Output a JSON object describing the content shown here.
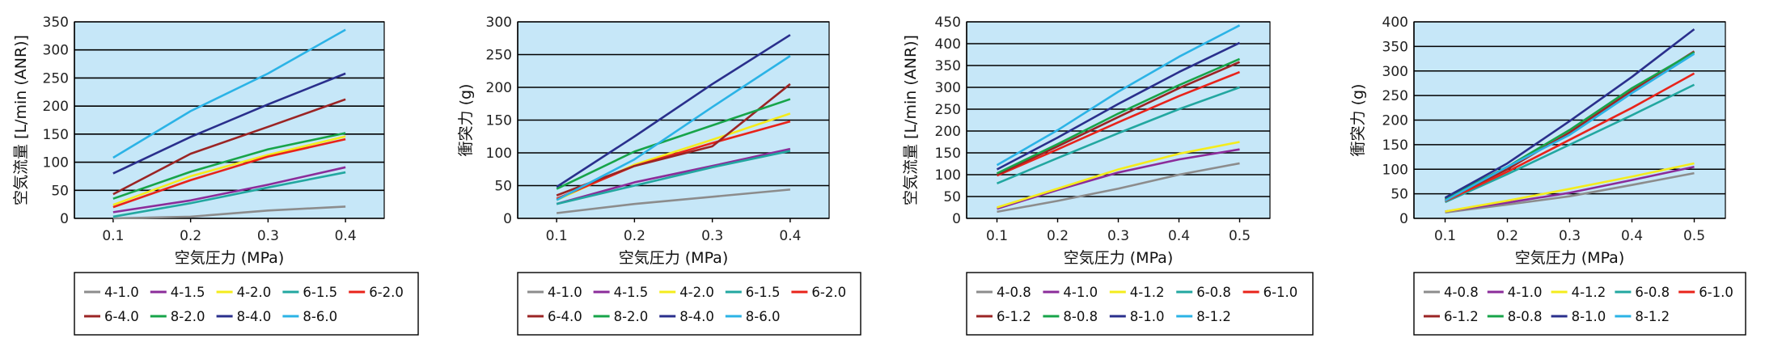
{
  "colors": {
    "plot_bg": "#c6e7f8",
    "grid": "#000000",
    "legend_border": "#000000",
    "series": {
      "gray": "#8c8c8c",
      "purple": "#8b2c9a",
      "yellow": "#f4ec1c",
      "teal": "#22a7a0",
      "red": "#e8231a",
      "darkred": "#9b2424",
      "green": "#17a449",
      "navy": "#2a2f8c",
      "sky": "#2bb3e6"
    }
  },
  "chart_data": [
    {
      "type": "line",
      "xlabel": "空気圧力 (MPa)",
      "ylabel": "空気流量 [L/min (ANR)]",
      "x": [
        0.1,
        0.2,
        0.3,
        0.4
      ],
      "xticks": [
        "0.1",
        "0.2",
        "0.3",
        "0.4"
      ],
      "xlim": [
        0.05,
        0.45
      ],
      "ylim": [
        0,
        350
      ],
      "yticks": [
        "0",
        "50",
        "100",
        "150",
        "200",
        "250",
        "300",
        "350"
      ],
      "legend_rows": 2,
      "series": [
        {
          "name": "4-1.0",
          "color": "gray",
          "values": [
            -5,
            3,
            14,
            21
          ]
        },
        {
          "name": "4-1.5",
          "color": "purple",
          "values": [
            11,
            32,
            60,
            91
          ]
        },
        {
          "name": "4-2.0",
          "color": "yellow",
          "values": [
            24,
            75,
            113,
            146
          ]
        },
        {
          "name": "6-1.5",
          "color": "teal",
          "values": [
            3,
            27,
            55,
            82
          ]
        },
        {
          "name": "6-2.0",
          "color": "red",
          "values": [
            20,
            68,
            110,
            141
          ]
        },
        {
          "name": "6-4.0",
          "color": "darkred",
          "values": [
            43,
            115,
            163,
            212
          ]
        },
        {
          "name": "8-2.0",
          "color": "green",
          "values": [
            35,
            83,
            123,
            152
          ]
        },
        {
          "name": "8-4.0",
          "color": "navy",
          "values": [
            80,
            145,
            203,
            258
          ]
        },
        {
          "name": "8-6.0",
          "color": "sky",
          "values": [
            108,
            191,
            258,
            336
          ]
        }
      ]
    },
    {
      "type": "line",
      "xlabel": "空気圧力 (MPa)",
      "ylabel": "衝突力 (g)",
      "x": [
        0.1,
        0.2,
        0.3,
        0.4
      ],
      "xticks": [
        "0.1",
        "0.2",
        "0.3",
        "0.4"
      ],
      "xlim": [
        0.05,
        0.45
      ],
      "ylim": [
        0,
        300
      ],
      "yticks": [
        "0",
        "50",
        "100",
        "150",
        "200",
        "250",
        "300"
      ],
      "legend_rows": 2,
      "series": [
        {
          "name": "4-1.0",
          "color": "gray",
          "values": [
            8,
            22,
            33,
            44
          ]
        },
        {
          "name": "4-1.5",
          "color": "purple",
          "values": [
            22,
            55,
            80,
            106
          ]
        },
        {
          "name": "4-2.0",
          "color": "yellow",
          "values": [
            28,
            82,
            120,
            160
          ]
        },
        {
          "name": "6-1.5",
          "color": "teal",
          "values": [
            22,
            50,
            78,
            103
          ]
        },
        {
          "name": "6-2.0",
          "color": "red",
          "values": [
            30,
            80,
            115,
            148
          ]
        },
        {
          "name": "6-4.0",
          "color": "darkred",
          "values": [
            35,
            80,
            110,
            205
          ]
        },
        {
          "name": "8-2.0",
          "color": "green",
          "values": [
            45,
            102,
            142,
            182
          ]
        },
        {
          "name": "8-4.0",
          "color": "navy",
          "values": [
            48,
            125,
            205,
            280
          ]
        },
        {
          "name": "8-6.0",
          "color": "sky",
          "values": [
            28,
            90,
            170,
            248
          ]
        }
      ]
    },
    {
      "type": "line",
      "xlabel": "空気圧力 (MPa)",
      "ylabel": "空気流量 [L/min (ANR)]",
      "x": [
        0.1,
        0.2,
        0.3,
        0.4,
        0.5
      ],
      "xticks": [
        "0.1",
        "0.2",
        "0.3",
        "0.4",
        "0.5"
      ],
      "xlim": [
        0.05,
        0.55
      ],
      "ylim": [
        0,
        450
      ],
      "yticks": [
        "0",
        "50",
        "100",
        "150",
        "200",
        "250",
        "300",
        "350",
        "400",
        "450"
      ],
      "legend_rows": 2,
      "series": [
        {
          "name": "4-0.8",
          "color": "gray",
          "values": [
            15,
            40,
            68,
            100,
            126
          ]
        },
        {
          "name": "4-1.0",
          "color": "purple",
          "values": [
            22,
            65,
            105,
            135,
            158
          ]
        },
        {
          "name": "4-1.2",
          "color": "yellow",
          "values": [
            25,
            68,
            112,
            148,
            175
          ]
        },
        {
          "name": "6-0.8",
          "color": "teal",
          "values": [
            80,
            138,
            195,
            250,
            300
          ]
        },
        {
          "name": "6-1.0",
          "color": "red",
          "values": [
            98,
            158,
            220,
            280,
            335
          ]
        },
        {
          "name": "6-1.2",
          "color": "darkred",
          "values": [
            100,
            165,
            232,
            298,
            358
          ]
        },
        {
          "name": "8-0.8",
          "color": "green",
          "values": [
            103,
            170,
            240,
            305,
            365
          ]
        },
        {
          "name": "8-1.0",
          "color": "navy",
          "values": [
            112,
            185,
            262,
            335,
            402
          ]
        },
        {
          "name": "8-1.2",
          "color": "sky",
          "values": [
            122,
            202,
            290,
            370,
            442
          ]
        }
      ]
    },
    {
      "type": "line",
      "xlabel": "空気圧力 (MPa)",
      "ylabel": "衝突力 (g)",
      "x": [
        0.1,
        0.2,
        0.3,
        0.4,
        0.5
      ],
      "xticks": [
        "0.1",
        "0.2",
        "0.3",
        "0.4",
        "0.5"
      ],
      "xlim": [
        0.05,
        0.55
      ],
      "ylim": [
        0,
        400
      ],
      "yticks": [
        "0",
        "50",
        "100",
        "150",
        "200",
        "250",
        "300",
        "350",
        "400"
      ],
      "legend_rows": 2,
      "series": [
        {
          "name": "4-0.8",
          "color": "gray",
          "values": [
            12,
            28,
            45,
            68,
            92
          ]
        },
        {
          "name": "4-1.0",
          "color": "purple",
          "values": [
            14,
            32,
            52,
            78,
            105
          ]
        },
        {
          "name": "4-1.2",
          "color": "yellow",
          "values": [
            14,
            36,
            60,
            85,
            112
          ]
        },
        {
          "name": "6-0.8",
          "color": "teal",
          "values": [
            33,
            90,
            150,
            210,
            272
          ]
        },
        {
          "name": "6-1.0",
          "color": "red",
          "values": [
            35,
            95,
            160,
            225,
            295
          ]
        },
        {
          "name": "6-1.2",
          "color": "darkred",
          "values": [
            38,
            100,
            175,
            260,
            340
          ]
        },
        {
          "name": "8-0.8",
          "color": "green",
          "values": [
            40,
            105,
            180,
            265,
            338
          ]
        },
        {
          "name": "8-1.0",
          "color": "navy",
          "values": [
            42,
            112,
            198,
            288,
            385
          ]
        },
        {
          "name": "8-1.2",
          "color": "sky",
          "values": [
            36,
            105,
            170,
            255,
            335
          ]
        }
      ]
    }
  ]
}
